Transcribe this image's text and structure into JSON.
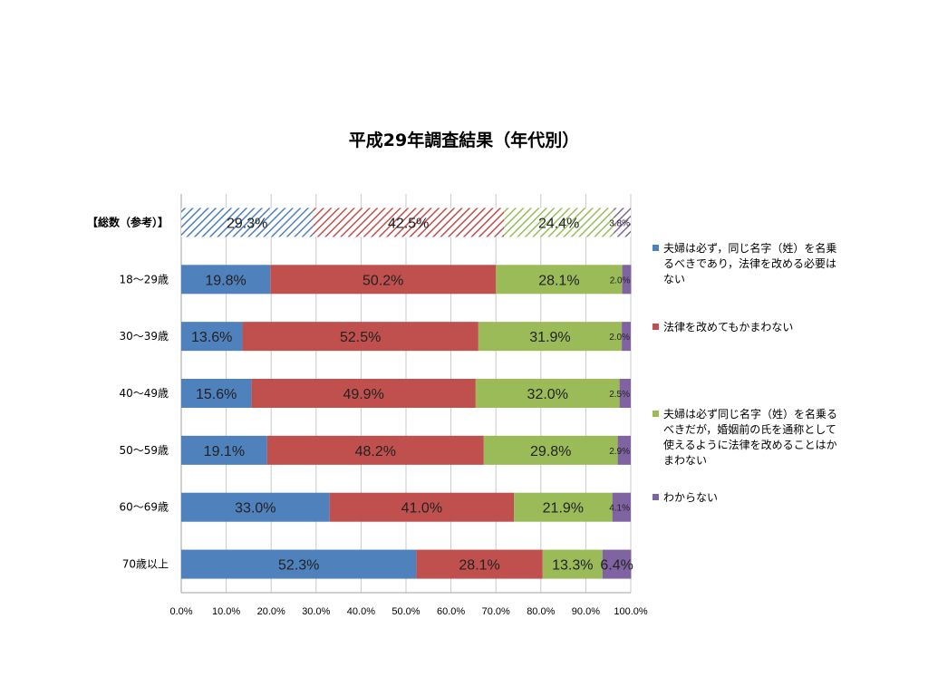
{
  "chart_data": {
    "type": "bar",
    "orientation": "horizontal",
    "stacked": "percent",
    "title": "平成29年調査結果（年代別）",
    "categories": [
      "【総数（参考）】",
      "18～29歳",
      "30～39歳",
      "40～49歳",
      "50～59歳",
      "60～69歳",
      "70歳以上"
    ],
    "hatched_categories": [
      "【総数（参考）】"
    ],
    "series": [
      {
        "name": "夫婦は必ず，同じ名字（姓）を名乗るべきであり，法律を改める必要はない",
        "values": [
          29.3,
          19.8,
          13.6,
          15.6,
          19.1,
          33.0,
          52.3
        ],
        "labels": [
          "29.3%",
          "19.8%",
          "13.6%",
          "15.6%",
          "19.1%",
          "33.0%",
          "52.3%"
        ],
        "color": "#4f81bd"
      },
      {
        "name": "法律を改めてもかまわない",
        "values": [
          42.5,
          50.2,
          52.5,
          49.9,
          48.2,
          41.0,
          28.1
        ],
        "labels": [
          "42.5%",
          "50.2%",
          "52.5%",
          "49.9%",
          "48.2%",
          "41.0%",
          "28.1%"
        ],
        "color": "#c0504d"
      },
      {
        "name": "夫婦は必ず同じ名字（姓）を名乗るべきだが，婚姻前の氏を通称として使えるように法律を改めることはかまわない",
        "values": [
          24.4,
          28.1,
          31.9,
          32.0,
          29.8,
          21.9,
          13.3
        ],
        "labels": [
          "24.4%",
          "28.1%",
          "31.9%",
          "32.0%",
          "29.8%",
          "21.9%",
          "13.3%"
        ],
        "color": "#9bbb59"
      },
      {
        "name": "わからない",
        "values": [
          3.8,
          2.0,
          2.0,
          2.5,
          2.9,
          4.1,
          6.4
        ],
        "labels": [
          "3.8%",
          "2.0%",
          "2.0%",
          "2.5%",
          "2.9%",
          "4.1%",
          "6.4%"
        ],
        "color": "#8064a2"
      }
    ],
    "x_ticks": [
      "0.0%",
      "10.0%",
      "20.0%",
      "30.0%",
      "40.0%",
      "50.0%",
      "60.0%",
      "70.0%",
      "80.0%",
      "90.0%",
      "100.0%"
    ],
    "xlim": [
      0,
      100
    ],
    "grid": true,
    "legend_position": "right"
  },
  "legend": {
    "items": [
      {
        "lines": [
          "夫婦は必ず，同じ名字（姓）を名乗",
          "るべきであり，法律を改める必要は",
          "ない"
        ],
        "color": "#4f81bd"
      },
      {
        "lines": [
          "法律を改めてもかまわない"
        ],
        "color": "#c0504d"
      },
      {
        "lines": [
          "夫婦は必ず同じ名字（姓）を名乗る",
          "べきだが，婚姻前の氏を通称として",
          "使えるように法律を改めることはか",
          "まわない"
        ],
        "color": "#9bbb59"
      },
      {
        "lines": [
          "わからない"
        ],
        "color": "#8064a2"
      }
    ]
  }
}
